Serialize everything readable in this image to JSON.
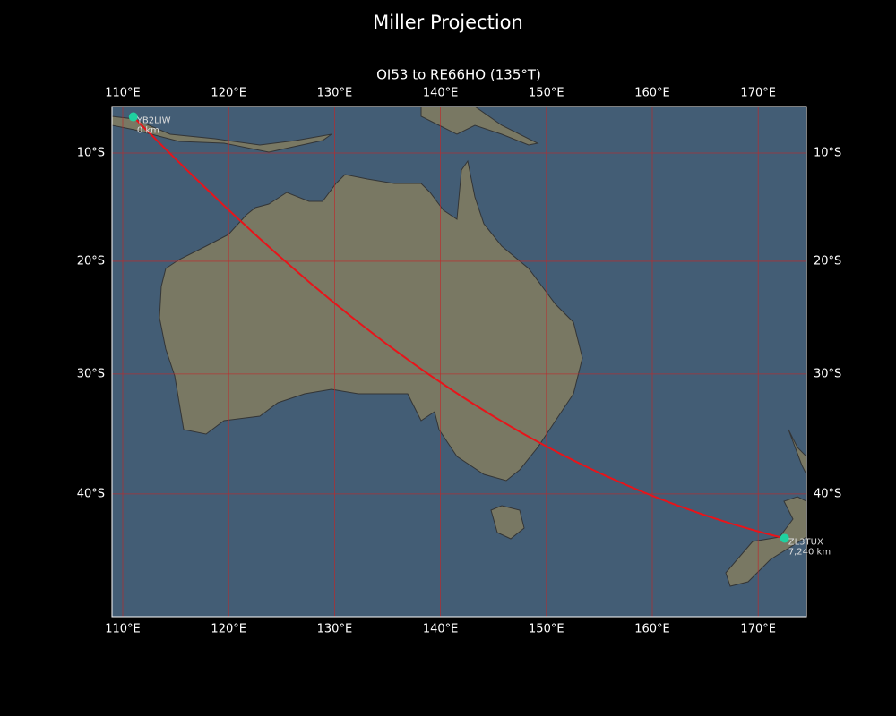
{
  "title": "Miller Projection",
  "subtitle": "OI53 to RE66HO (135°T)",
  "longitudes": [
    {
      "value": 110,
      "label": "110°E"
    },
    {
      "value": 120,
      "label": "120°E"
    },
    {
      "value": 130,
      "label": "130°E"
    },
    {
      "value": 140,
      "label": "140°E"
    },
    {
      "value": 150,
      "label": "150°E"
    },
    {
      "value": 160,
      "label": "160°E"
    },
    {
      "value": 170,
      "label": "170°E"
    }
  ],
  "latitudes": [
    {
      "value": 10,
      "label": "10°S"
    },
    {
      "value": 20,
      "label": "20°S"
    },
    {
      "value": 30,
      "label": "30°S"
    },
    {
      "value": 40,
      "label": "40°S"
    }
  ],
  "stations": [
    {
      "name": "YB2LIW",
      "lon": 111,
      "lat": 6.6,
      "distance": {
        "value": 0,
        "label": "0 km"
      }
    },
    {
      "name": "ZL3TUX",
      "lon": 172.5,
      "lat": 43.5,
      "distance": {
        "value": 7240,
        "label": "7,240 km"
      }
    }
  ]
}
